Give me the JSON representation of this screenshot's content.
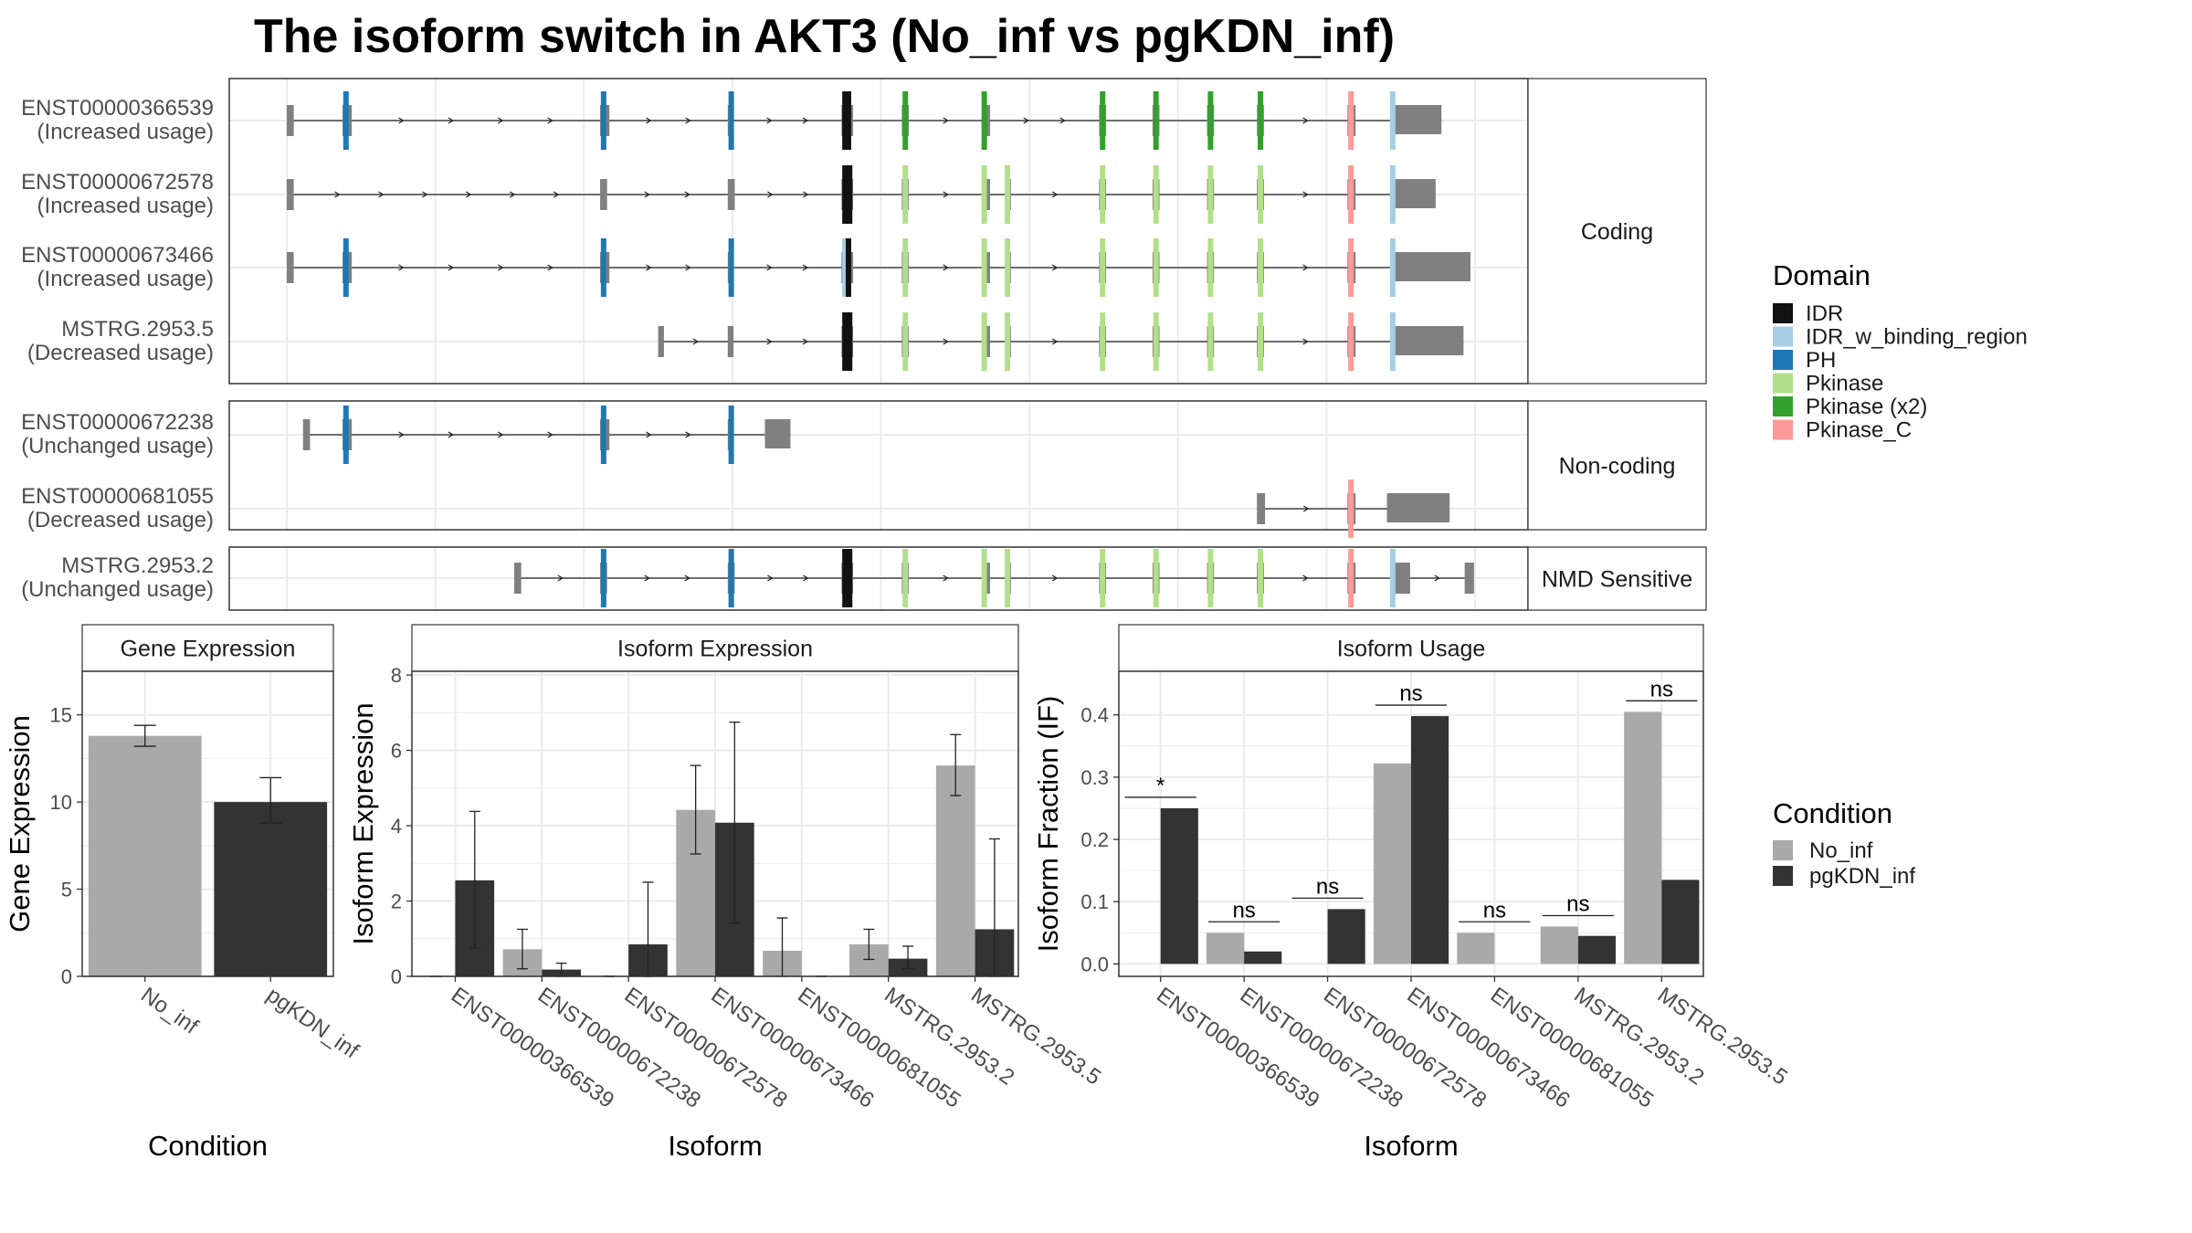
{
  "title": "The isoform switch in AKT3 (No_inf vs pgKDN_inf)",
  "colors": {
    "no_inf": "#a9a9a9",
    "pgkdn_inf": "#333333",
    "exon": "#808080",
    "strip_bg": "#ffffff",
    "grid": "#ebebeb"
  },
  "chart_data": [
    {
      "type": "gene_structure",
      "title": "The isoform switch in AKT3 (No_inf vs pgKDN_inf)",
      "xlim": [
        0,
        1000
      ],
      "groups": [
        {
          "label": "Coding",
          "isoforms": [
            {
              "name": "ENST00000366539",
              "usage": "(Increased usage)",
              "exons": [
                [
                  0,
                  6
                ],
                [
                  48,
                  56
                ],
                [
                  270,
                  278
                ],
                [
                  380,
                  385
                ],
                [
                  478,
                  488
                ],
                [
                  530,
                  536
                ],
                [
                  600,
                  606
                ],
                [
                  700,
                  706
                ],
                [
                  746,
                  752
                ],
                [
                  793,
                  799
                ],
                [
                  836,
                  842
                ],
                [
                  914,
                  921
                ],
                [
                  953,
                  995
                ]
              ],
              "domains": [
                [
                  "PH",
                  51
                ],
                [
                  "PH",
                  273
                ],
                [
                  "PH",
                  383
                ],
                [
                  "IDR",
                  481
                ],
                [
                  "IDR",
                  484
                ],
                [
                  "Pkinase (x2)",
                  533
                ],
                [
                  "Pkinase (x2)",
                  601
                ],
                [
                  "Pkinase (x2)",
                  703
                ],
                [
                  "Pkinase (x2)",
                  749
                ],
                [
                  "Pkinase (x2)",
                  796
                ],
                [
                  "Pkinase (x2)",
                  839
                ],
                [
                  "Pkinase_C",
                  917
                ],
                [
                  "IDR_w_binding_region",
                  953
                ]
              ]
            },
            {
              "name": "ENST00000672578",
              "usage": "(Increased usage)",
              "exons": [
                [
                  0,
                  6
                ],
                [
                  270,
                  276
                ],
                [
                  380,
                  386
                ],
                [
                  478,
                  488
                ],
                [
                  530,
                  536
                ],
                [
                  600,
                  606
                ],
                [
                  620,
                  624
                ],
                [
                  700,
                  706
                ],
                [
                  746,
                  752
                ],
                [
                  793,
                  799
                ],
                [
                  836,
                  842
                ],
                [
                  914,
                  921
                ],
                [
                  953,
                  990
                ]
              ],
              "domains": [
                [
                  "IDR",
                  481
                ],
                [
                  "IDR",
                  485
                ],
                [
                  "Pkinase",
                  533
                ],
                [
                  "Pkinase",
                  601
                ],
                [
                  "Pkinase",
                  621
                ],
                [
                  "Pkinase",
                  703
                ],
                [
                  "Pkinase",
                  749
                ],
                [
                  "Pkinase",
                  796
                ],
                [
                  "Pkinase",
                  839
                ],
                [
                  "Pkinase_C",
                  917
                ],
                [
                  "IDR_w_binding_region",
                  953
                ]
              ]
            },
            {
              "name": "ENST00000673466",
              "usage": "(Increased usage)",
              "exons": [
                [
                  0,
                  6
                ],
                [
                  48,
                  56
                ],
                [
                  270,
                  278
                ],
                [
                  380,
                  385
                ],
                [
                  478,
                  488
                ],
                [
                  530,
                  536
                ],
                [
                  600,
                  606
                ],
                [
                  620,
                  624
                ],
                [
                  700,
                  706
                ],
                [
                  746,
                  752
                ],
                [
                  793,
                  799
                ],
                [
                  836,
                  842
                ],
                [
                  914,
                  921
                ],
                [
                  953,
                  1020
                ]
              ],
              "domains": [
                [
                  "PH",
                  51
                ],
                [
                  "PH",
                  273
                ],
                [
                  "PH",
                  383
                ],
                [
                  "IDR_w_binding_region",
                  481
                ],
                [
                  "IDR",
                  484
                ],
                [
                  "Pkinase",
                  533
                ],
                [
                  "Pkinase",
                  601
                ],
                [
                  "Pkinase",
                  621
                ],
                [
                  "Pkinase",
                  703
                ],
                [
                  "Pkinase",
                  749
                ],
                [
                  "Pkinase",
                  796
                ],
                [
                  "Pkinase",
                  839
                ],
                [
                  "Pkinase_C",
                  917
                ],
                [
                  "IDR_w_binding_region",
                  953
                ]
              ]
            },
            {
              "name": "MSTRG.2953.5",
              "usage": "(Decreased usage)",
              "exons": [
                [
                  320,
                  325
                ],
                [
                  380,
                  385
                ],
                [
                  478,
                  488
                ],
                [
                  530,
                  536
                ],
                [
                  600,
                  606
                ],
                [
                  620,
                  624
                ],
                [
                  700,
                  706
                ],
                [
                  746,
                  752
                ],
                [
                  793,
                  799
                ],
                [
                  836,
                  842
                ],
                [
                  914,
                  921
                ],
                [
                  953,
                  1014
                ]
              ],
              "domains": [
                [
                  "IDR",
                  481
                ],
                [
                  "IDR",
                  485
                ],
                [
                  "Pkinase",
                  533
                ],
                [
                  "Pkinase",
                  601
                ],
                [
                  "Pkinase",
                  621
                ],
                [
                  "Pkinase",
                  703
                ],
                [
                  "Pkinase",
                  749
                ],
                [
                  "Pkinase",
                  796
                ],
                [
                  "Pkinase",
                  839
                ],
                [
                  "Pkinase_C",
                  917
                ],
                [
                  "IDR_w_binding_region",
                  953
                ]
              ]
            }
          ]
        },
        {
          "label": "Non-coding",
          "isoforms": [
            {
              "name": "ENST00000672238",
              "usage": "(Unchanged usage)",
              "exons": [
                [
                  14,
                  20
                ],
                [
                  48,
                  56
                ],
                [
                  270,
                  278
                ],
                [
                  380,
                  385
                ],
                [
                  412,
                  434
                ]
              ],
              "domains": [
                [
                  "PH",
                  51
                ],
                [
                  "PH",
                  273
                ],
                [
                  "PH",
                  383
                ]
              ]
            },
            {
              "name": "ENST00000681055",
              "usage": "(Decreased usage)",
              "exons": [
                [
                  836,
                  843
                ],
                [
                  914,
                  921
                ],
                [
                  948,
                  1002
                ]
              ],
              "domains": [
                [
                  "Pkinase_C",
                  917
                ]
              ]
            }
          ]
        },
        {
          "label": "NMD Sensitive",
          "isoforms": [
            {
              "name": "MSTRG.2953.2",
              "usage": "(Unchanged usage)",
              "exons": [
                [
                  196,
                  202
                ],
                [
                  270,
                  276
                ],
                [
                  380,
                  386
                ],
                [
                  478,
                  488
                ],
                [
                  530,
                  536
                ],
                [
                  600,
                  606
                ],
                [
                  620,
                  624
                ],
                [
                  700,
                  706
                ],
                [
                  746,
                  752
                ],
                [
                  793,
                  799
                ],
                [
                  836,
                  842
                ],
                [
                  914,
                  921
                ],
                [
                  953,
                  968
                ],
                [
                  1015,
                  1023
                ]
              ],
              "domains": [
                [
                  "PH",
                  273
                ],
                [
                  "PH",
                  383
                ],
                [
                  "IDR",
                  481
                ],
                [
                  "IDR",
                  485
                ],
                [
                  "Pkinase",
                  533
                ],
                [
                  "Pkinase",
                  601
                ],
                [
                  "Pkinase",
                  621
                ],
                [
                  "Pkinase",
                  703
                ],
                [
                  "Pkinase",
                  749
                ],
                [
                  "Pkinase",
                  796
                ],
                [
                  "Pkinase",
                  839
                ],
                [
                  "Pkinase_C",
                  917
                ],
                [
                  "IDR_w_binding_region",
                  953
                ]
              ]
            }
          ]
        }
      ],
      "legend": {
        "title": "Domain",
        "entries": [
          {
            "name": "IDR",
            "color": "#111111"
          },
          {
            "name": "IDR_w_binding_region",
            "color": "#a6cee3"
          },
          {
            "name": "PH",
            "color": "#1f78b4"
          },
          {
            "name": "Pkinase",
            "color": "#b2df8a"
          },
          {
            "name": "Pkinase (x2)",
            "color": "#33a02c"
          },
          {
            "name": "Pkinase_C",
            "color": "#fb9a99"
          }
        ]
      }
    },
    {
      "type": "bar",
      "title": "Gene Expression",
      "xlabel": "Condition",
      "ylabel": "Gene Expression",
      "ylim": [
        0,
        17.5
      ],
      "yticks": [
        0,
        5,
        10,
        15
      ],
      "categories": [
        "No_inf",
        "pgKDN_inf"
      ],
      "values": [
        13.8,
        10.0
      ],
      "err_low": [
        13.2,
        8.8
      ],
      "err_high": [
        14.4,
        11.4
      ]
    },
    {
      "type": "bar",
      "title": "Isoform Expression",
      "xlabel": "Isoform",
      "ylabel": "Isoform Expression",
      "ylim": [
        0,
        8.1
      ],
      "yticks": [
        0,
        2,
        4,
        6,
        8
      ],
      "categories": [
        "ENST00000366539",
        "ENST00000672238",
        "ENST00000672578",
        "ENST00000673466",
        "ENST00000681055",
        "MSTRG.2953.2",
        "MSTRG.2953.5"
      ],
      "series": [
        {
          "name": "No_inf",
          "values": [
            0.0,
            0.72,
            0.0,
            4.42,
            0.68,
            0.85,
            5.6
          ],
          "err_low": [
            0.0,
            0.2,
            0.0,
            3.25,
            0.0,
            0.45,
            4.8
          ],
          "err_high": [
            0.0,
            1.25,
            0.0,
            5.6,
            1.55,
            1.25,
            6.42
          ]
        },
        {
          "name": "pgKDN_inf",
          "values": [
            2.55,
            0.18,
            0.85,
            4.08,
            0.0,
            0.47,
            1.25
          ],
          "err_low": [
            0.75,
            0.0,
            0.0,
            1.42,
            0.0,
            0.2,
            0.0
          ],
          "err_high": [
            4.38,
            0.35,
            2.5,
            6.75,
            0.0,
            0.8,
            3.65
          ]
        }
      ]
    },
    {
      "type": "bar",
      "title": "Isoform Usage",
      "xlabel": "Isoform",
      "ylabel": "Isoform Fraction (IF)",
      "ylim": [
        -0.02,
        0.47
      ],
      "yticks": [
        0.0,
        0.1,
        0.2,
        0.3,
        0.4
      ],
      "yticklabels": [
        "0.0",
        "0.1",
        "0.2",
        "0.3",
        "0.4"
      ],
      "categories": [
        "ENST00000366539",
        "ENST00000672238",
        "ENST00000672578",
        "ENST00000673466",
        "ENST00000681055",
        "MSTRG.2953.2",
        "MSTRG.2953.5"
      ],
      "series": [
        {
          "name": "No_inf",
          "values": [
            0.0,
            0.05,
            0.0,
            0.322,
            0.05,
            0.06,
            0.405
          ]
        },
        {
          "name": "pgKDN_inf",
          "values": [
            0.25,
            0.02,
            0.088,
            0.398,
            0.0,
            0.045,
            0.135
          ]
        }
      ],
      "significance": [
        "*",
        "ns",
        "ns",
        "ns",
        "ns",
        "ns",
        "ns"
      ],
      "legend": {
        "title": "Condition",
        "entries": [
          "No_inf",
          "pgKDN_inf"
        ]
      }
    }
  ]
}
